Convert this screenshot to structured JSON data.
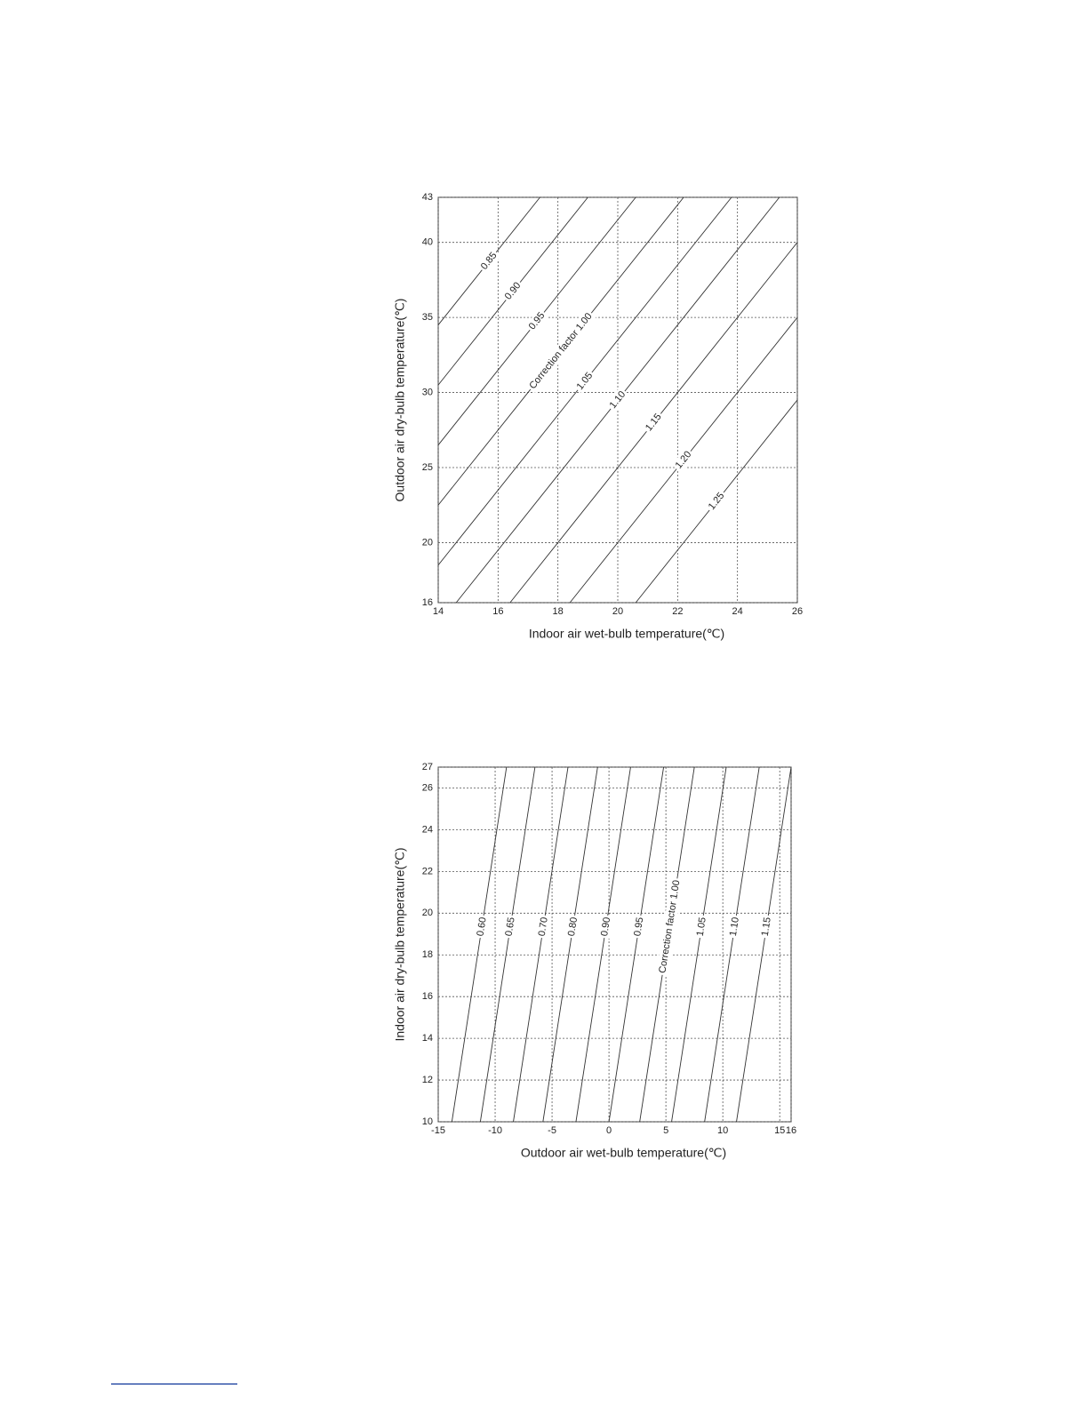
{
  "chart_data": [
    {
      "type": "line",
      "x_label": "Indoor air wet-bulb temperature(℃)",
      "y_label": "Outdoor air dry-bulb temperature(℃)",
      "xlim": [
        14,
        26
      ],
      "xticks": [
        14,
        16,
        18,
        20,
        22,
        24,
        26
      ],
      "ylim": [
        16,
        43
      ],
      "yticks": [
        16,
        20,
        25,
        30,
        35,
        40,
        43
      ],
      "grid": true,
      "color": "#333333",
      "series": [
        {
          "name": "0.85",
          "x": [
            14,
            17.4
          ],
          "values": [
            34.5,
            43
          ]
        },
        {
          "name": "0.90",
          "x": [
            14,
            19.0
          ],
          "values": [
            30.5,
            43
          ]
        },
        {
          "name": "0.95",
          "x": [
            14,
            20.6
          ],
          "values": [
            26.5,
            43
          ]
        },
        {
          "name": "Correction factor 1.00",
          "x": [
            14,
            22.2
          ],
          "values": [
            22.5,
            43
          ]
        },
        {
          "name": "1.05",
          "x": [
            14,
            23.8
          ],
          "values": [
            18.5,
            43
          ]
        },
        {
          "name": "1.10",
          "x": [
            14.6,
            25.4
          ],
          "values": [
            16,
            43
          ]
        },
        {
          "name": "1.15",
          "x": [
            16.4,
            26
          ],
          "values": [
            16,
            40
          ]
        },
        {
          "name": "1.20",
          "x": [
            18.4,
            26
          ],
          "values": [
            16,
            35
          ]
        },
        {
          "name": "1.25",
          "x": [
            20.6,
            26
          ],
          "values": [
            16,
            29.5
          ]
        }
      ]
    },
    {
      "type": "line",
      "x_label": "Outdoor air wet-bulb temperature(℃)",
      "y_label": "Indoor air dry-bulb temperature(℃)",
      "xlim": [
        -15,
        16
      ],
      "xticks": [
        -15,
        -10,
        -5,
        0,
        5,
        10,
        15,
        16
      ],
      "ylim": [
        10,
        27
      ],
      "yticks": [
        10,
        12,
        14,
        16,
        18,
        20,
        22,
        24,
        26,
        27
      ],
      "grid": true,
      "color": "#333333",
      "series": [
        {
          "name": "0.60",
          "x": [
            -13.8,
            -9.0
          ],
          "values": [
            10,
            27
          ]
        },
        {
          "name": "0.65",
          "x": [
            -11.3,
            -6.5
          ],
          "values": [
            10,
            27
          ]
        },
        {
          "name": "0.70",
          "x": [
            -8.4,
            -3.6
          ],
          "values": [
            10,
            27
          ]
        },
        {
          "name": "0.80",
          "x": [
            -5.8,
            -1.0
          ],
          "values": [
            10,
            27
          ]
        },
        {
          "name": "0.90",
          "x": [
            -2.9,
            1.9
          ],
          "values": [
            10,
            27
          ]
        },
        {
          "name": "0.95",
          "x": [
            0,
            4.8
          ],
          "values": [
            10,
            27
          ]
        },
        {
          "name": "Correction factor 1.00",
          "x": [
            2.7,
            7.5
          ],
          "values": [
            10,
            27
          ]
        },
        {
          "name": "1.05",
          "x": [
            5.5,
            10.3
          ],
          "values": [
            10,
            27
          ]
        },
        {
          "name": "1.10",
          "x": [
            8.4,
            13.2
          ],
          "values": [
            10,
            27
          ]
        },
        {
          "name": "1.15",
          "x": [
            11.2,
            16.0
          ],
          "values": [
            10,
            27
          ]
        }
      ]
    }
  ]
}
